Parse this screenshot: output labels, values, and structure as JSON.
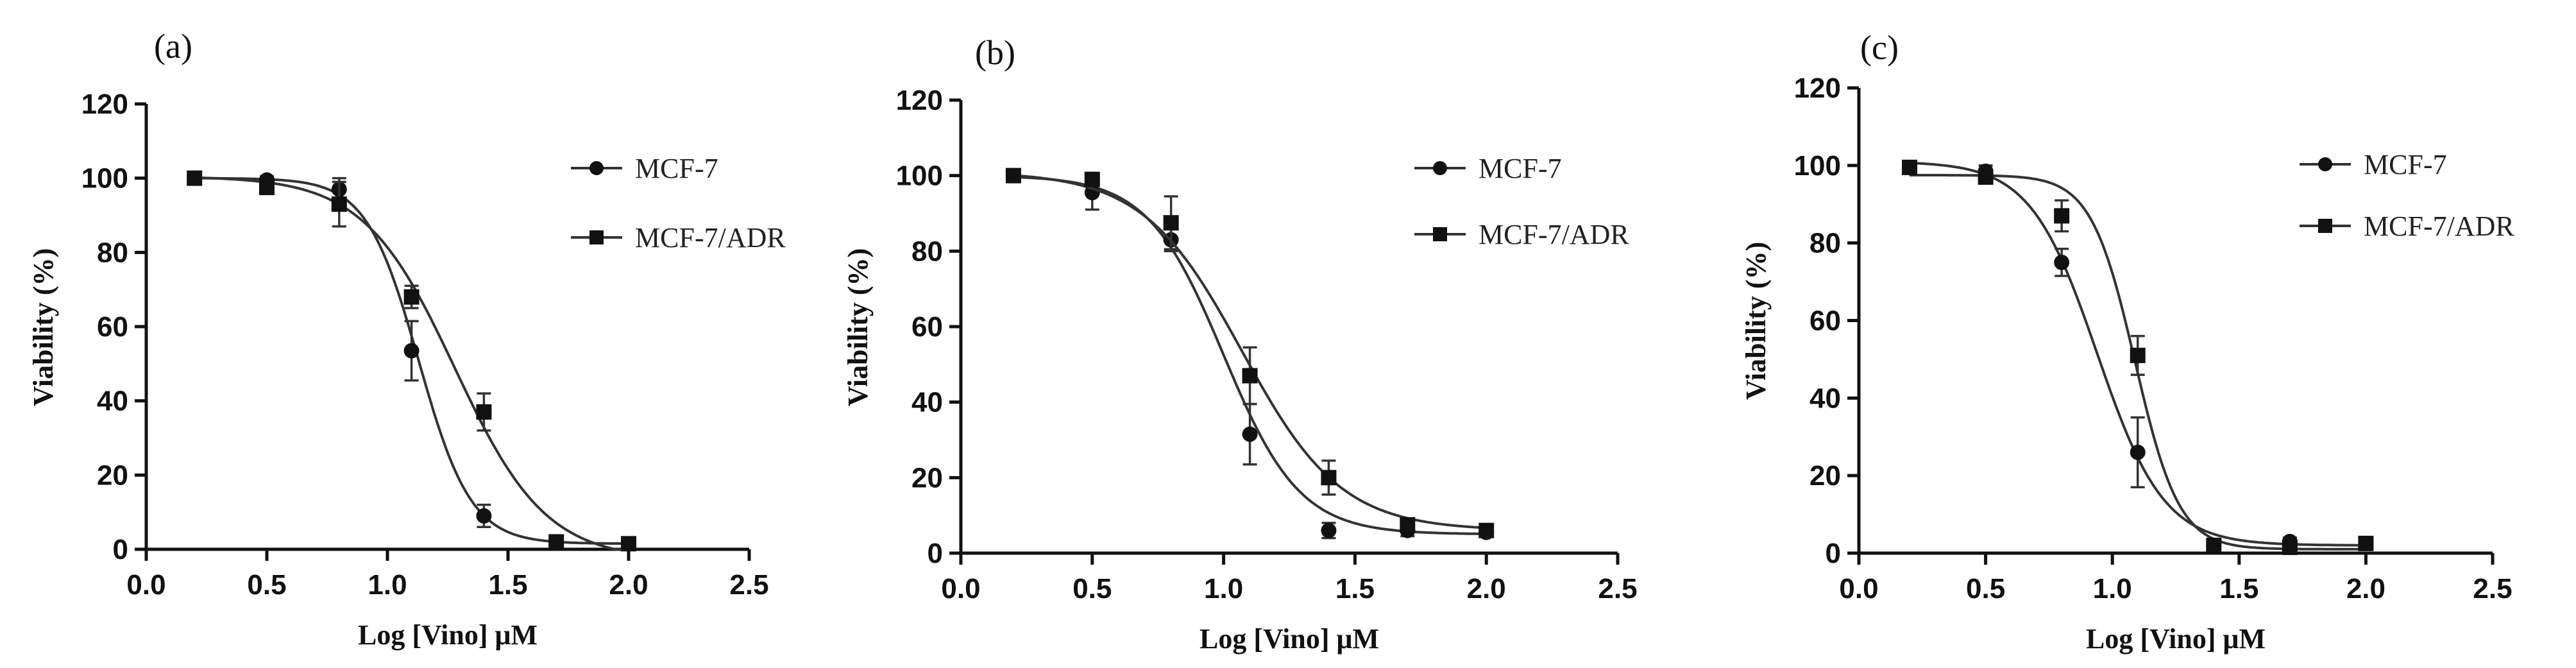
{
  "chart_data": [
    {
      "panel_label": "(a)",
      "type": "scatter",
      "xlabel": "Log [Vino] μM",
      "ylabel": "Viability (%)",
      "xlim": [
        0.0,
        2.5
      ],
      "ylim": [
        0,
        120
      ],
      "xticks": [
        "0.0",
        "0.5",
        "1.0",
        "1.5",
        "2.0",
        "2.5"
      ],
      "yticks": [
        "0",
        "20",
        "40",
        "60",
        "80",
        "100",
        "120"
      ],
      "legend_position": "right",
      "series": [
        {
          "name": "MCF-7",
          "marker": "circle",
          "x": [
            0.2,
            0.5,
            0.8,
            1.1,
            1.4,
            1.7,
            2.0
          ],
          "y": [
            100,
            99.5,
            97,
            53.5,
            9,
            2,
            1.5
          ],
          "err": [
            1,
            1,
            3,
            8,
            3,
            1,
            1
          ],
          "fit": {
            "top": 100,
            "bottom": 1.5,
            "logIC50": 1.13,
            "hill": 4.0
          }
        },
        {
          "name": "MCF-7/ADR",
          "marker": "square",
          "x": [
            0.2,
            0.5,
            0.8,
            1.1,
            1.4,
            1.7,
            2.0
          ],
          "y": [
            100,
            97.5,
            93,
            68,
            37,
            2,
            1.5
          ],
          "err": [
            1,
            1.5,
            6,
            3,
            5,
            1,
            1
          ],
          "fit": {
            "top": 100.5,
            "bottom": -3,
            "logIC50": 1.28,
            "hill": 2.3
          }
        }
      ]
    },
    {
      "panel_label": "(b)",
      "type": "scatter",
      "xlabel": "Log [Vino] μM",
      "ylabel": "Viability (%)",
      "xlim": [
        0.0,
        2.5
      ],
      "ylim": [
        0,
        120
      ],
      "xticks": [
        "0.0",
        "0.5",
        "1.0",
        "1.5",
        "2.0",
        "2.5"
      ],
      "yticks": [
        "0",
        "20",
        "40",
        "60",
        "80",
        "100",
        "120"
      ],
      "legend_position": "right",
      "series": [
        {
          "name": "MCF-7",
          "marker": "circle",
          "x": [
            0.2,
            0.5,
            0.8,
            1.1,
            1.4,
            1.7,
            2.0
          ],
          "y": [
            100,
            95.5,
            83,
            31.5,
            6,
            6,
            5.5
          ],
          "err": [
            1,
            4.5,
            3,
            8,
            2,
            1.5,
            1
          ],
          "fit": {
            "top": 100,
            "bottom": 5,
            "logIC50": 1.0,
            "hill": 3.0
          }
        },
        {
          "name": "MCF-7/ADR",
          "marker": "square",
          "x": [
            0.2,
            0.5,
            0.8,
            1.1,
            1.4,
            1.7,
            2.0
          ],
          "y": [
            100,
            99,
            87.5,
            47,
            20,
            7.5,
            6
          ],
          "err": [
            1,
            1.5,
            7,
            7.5,
            4.5,
            1.5,
            1
          ],
          "fit": {
            "top": 101,
            "bottom": 6,
            "logIC50": 1.07,
            "hill": 2.3
          }
        }
      ]
    },
    {
      "panel_label": "(c)",
      "type": "scatter",
      "xlabel": "Log [Vino] μM",
      "ylabel": "Viability (%)",
      "xlim": [
        0.0,
        2.5
      ],
      "ylim": [
        0,
        120
      ],
      "xticks": [
        "0.0",
        "0.5",
        "1.0",
        "1.5",
        "2.0",
        "2.5"
      ],
      "yticks": [
        "0",
        "20",
        "40",
        "60",
        "80",
        "100",
        "120"
      ],
      "legend_position": "right",
      "series": [
        {
          "name": "MCF-7",
          "marker": "circle",
          "x": [
            0.2,
            0.5,
            0.8,
            1.1,
            1.4,
            1.7,
            2.0
          ],
          "y": [
            99.5,
            98.5,
            75,
            26,
            2,
            3,
            2.5
          ],
          "err": [
            1,
            1.5,
            3.5,
            9,
            1,
            1,
            1
          ],
          "fit": {
            "top": 101,
            "bottom": 2,
            "logIC50": 0.94,
            "hill": 3.3
          }
        },
        {
          "name": "MCF-7/ADR",
          "marker": "square",
          "x": [
            0.2,
            0.5,
            0.8,
            1.1,
            1.4,
            1.7,
            2.0
          ],
          "y": [
            99.5,
            97,
            87,
            51,
            2,
            1.5,
            2.5
          ],
          "err": [
            1,
            1,
            4,
            5,
            1,
            1,
            1
          ],
          "fit": {
            "top": 97.5,
            "bottom": 1,
            "logIC50": 1.09,
            "hill": 5.0
          }
        }
      ]
    }
  ]
}
